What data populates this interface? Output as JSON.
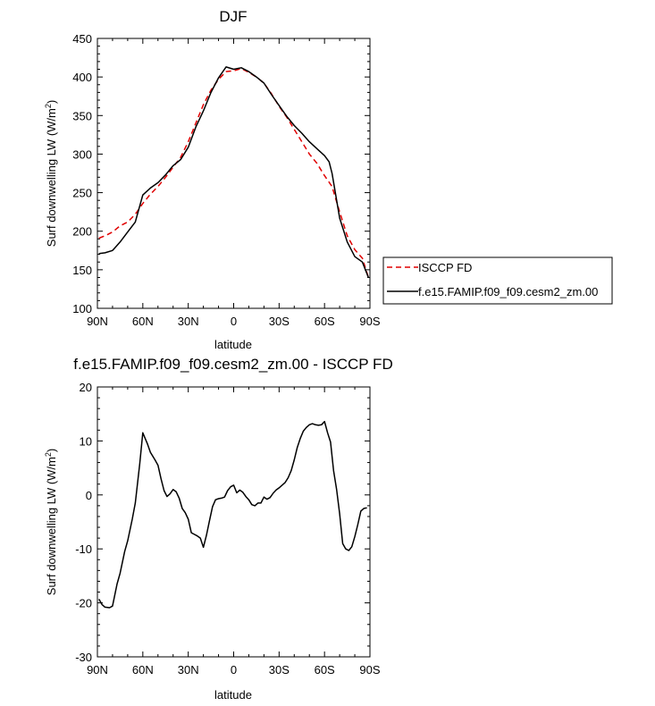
{
  "chart_data": [
    {
      "type": "line",
      "title": "DJF",
      "xlabel": "latitude",
      "ylabel_main": "Surf downwelling LW (W/m",
      "ylabel_sup": "2",
      "ylabel_close": ")",
      "xlim": [
        90,
        -90
      ],
      "ylim": [
        100,
        450
      ],
      "xticks": [
        90,
        60,
        30,
        0,
        -30,
        -60,
        -90
      ],
      "xtick_labels": [
        "90N",
        "60N",
        "30N",
        "0",
        "30S",
        "60S",
        "90S"
      ],
      "yticks": [
        100,
        150,
        200,
        250,
        300,
        350,
        400,
        450
      ],
      "ytick_labels": [
        "100",
        "150",
        "200",
        "250",
        "300",
        "350",
        "400",
        "450"
      ],
      "legend_position": "right",
      "series": [
        {
          "name": "ISCCP FD",
          "color": "#e00000",
          "dash": "dashed",
          "x": [
            89,
            85,
            80,
            75,
            70,
            65,
            60,
            55,
            50,
            45,
            40,
            35,
            30,
            25,
            20,
            15,
            10,
            5,
            0,
            -5,
            -10,
            -15,
            -20,
            -25,
            -30,
            -35,
            -40,
            -45,
            -50,
            -55,
            -60,
            -65,
            -70,
            -75,
            -80,
            -85,
            -89
          ],
          "y": [
            191,
            194,
            199,
            207,
            212,
            222,
            236,
            248,
            258,
            270,
            283,
            296,
            316,
            340,
            364,
            383,
            397,
            407,
            408,
            411,
            406,
            400,
            392,
            378,
            362,
            348,
            332,
            316,
            300,
            288,
            272,
            258,
            225,
            194,
            176,
            165,
            140
          ]
        },
        {
          "name": "f.e15.FAMIP.f09_f09.cesm2_zm.00",
          "color": "#000000",
          "dash": "solid",
          "x": [
            89,
            85,
            80,
            75,
            70,
            65,
            60,
            55,
            50,
            45,
            40,
            35,
            30,
            25,
            20,
            15,
            10,
            5,
            0,
            -5,
            -10,
            -15,
            -20,
            -25,
            -30,
            -35,
            -40,
            -45,
            -50,
            -55,
            -60,
            -63,
            -65,
            -70,
            -75,
            -80,
            -85,
            -89
          ],
          "y": [
            171,
            172,
            175,
            186,
            199,
            212,
            247,
            256,
            263,
            273,
            285,
            293,
            309,
            335,
            356,
            380,
            399,
            413,
            410,
            412,
            407,
            400,
            392,
            377,
            363,
            349,
            337,
            327,
            316,
            307,
            298,
            290,
            275,
            217,
            186,
            167,
            160,
            140
          ]
        }
      ]
    },
    {
      "type": "line",
      "title": "f.e15.FAMIP.f09_f09.cesm2_zm.00 - ISCCP FD",
      "xlabel": "latitude",
      "ylabel_main": "Surf downwelling LW (W/m",
      "ylabel_sup": "2",
      "ylabel_close": ")",
      "xlim": [
        90,
        -90
      ],
      "ylim": [
        -30,
        20
      ],
      "xticks": [
        90,
        60,
        30,
        0,
        -30,
        -60,
        -90
      ],
      "xtick_labels": [
        "90N",
        "60N",
        "30N",
        "0",
        "30S",
        "60S",
        "90S"
      ],
      "yticks": [
        -30,
        -20,
        -10,
        0,
        10,
        20
      ],
      "ytick_labels": [
        "-30",
        "-20",
        "-10",
        "0",
        "10",
        "20"
      ],
      "series": [
        {
          "color": "#000000",
          "dash": "solid",
          "x": [
            89,
            87,
            85,
            82,
            80,
            77,
            75,
            72,
            70,
            67,
            65,
            62,
            60,
            57,
            55,
            52,
            50,
            48,
            46,
            44,
            42,
            40,
            38,
            36,
            34,
            32,
            30,
            28,
            26,
            24,
            22,
            20,
            18,
            16,
            14,
            12,
            10,
            8,
            6,
            4,
            2,
            0,
            -2,
            -4,
            -6,
            -8,
            -10,
            -12,
            -14,
            -16,
            -18,
            -20,
            -22,
            -24,
            -26,
            -28,
            -30,
            -32,
            -34,
            -36,
            -38,
            -40,
            -42,
            -44,
            -46,
            -48,
            -50,
            -52,
            -54,
            -56,
            -58,
            -60,
            -62,
            -64,
            -66,
            -68,
            -70,
            -72,
            -74,
            -76,
            -78,
            -80,
            -82,
            -84,
            -86,
            -88
          ],
          "y": [
            -19.3,
            -20.3,
            -20.8,
            -20.9,
            -20.6,
            -16.5,
            -14.5,
            -10.5,
            -8.5,
            -4.5,
            -1.5,
            5.8,
            11.5,
            9.5,
            7.9,
            6.5,
            5.5,
            3.0,
            0.8,
            -0.3,
            0.2,
            1.0,
            0.6,
            -0.6,
            -2.5,
            -3.3,
            -4.5,
            -7.0,
            -7.3,
            -7.6,
            -8.0,
            -9.7,
            -7.5,
            -4.8,
            -2.2,
            -0.9,
            -0.7,
            -0.6,
            -0.4,
            0.8,
            1.5,
            1.8,
            0.4,
            0.9,
            0.5,
            -0.3,
            -0.9,
            -1.8,
            -2.0,
            -1.5,
            -1.5,
            -0.4,
            -0.8,
            -0.5,
            0.3,
            0.9,
            1.3,
            1.8,
            2.3,
            3.2,
            4.5,
            6.5,
            8.8,
            10.5,
            11.8,
            12.5,
            13.0,
            13.2,
            13.0,
            12.9,
            13.0,
            13.6,
            11.5,
            9.8,
            4.5,
            1.0,
            -3.5,
            -9.0,
            -10.0,
            -10.3,
            -9.6,
            -7.7,
            -5.5,
            -3.0,
            -2.5,
            -2.4
          ]
        }
      ]
    }
  ]
}
